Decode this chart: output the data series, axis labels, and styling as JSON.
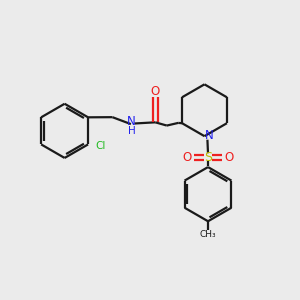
{
  "bg_color": "#ebebeb",
  "bond_color": "#1a1a1a",
  "N_color": "#2020ee",
  "O_color": "#ee2020",
  "S_color": "#bbbb00",
  "Cl_color": "#22bb22",
  "line_width": 1.6,
  "fig_size": [
    3.0,
    3.0
  ],
  "dpi": 100,
  "xlim": [
    0,
    1
  ],
  "ylim": [
    0,
    1
  ]
}
